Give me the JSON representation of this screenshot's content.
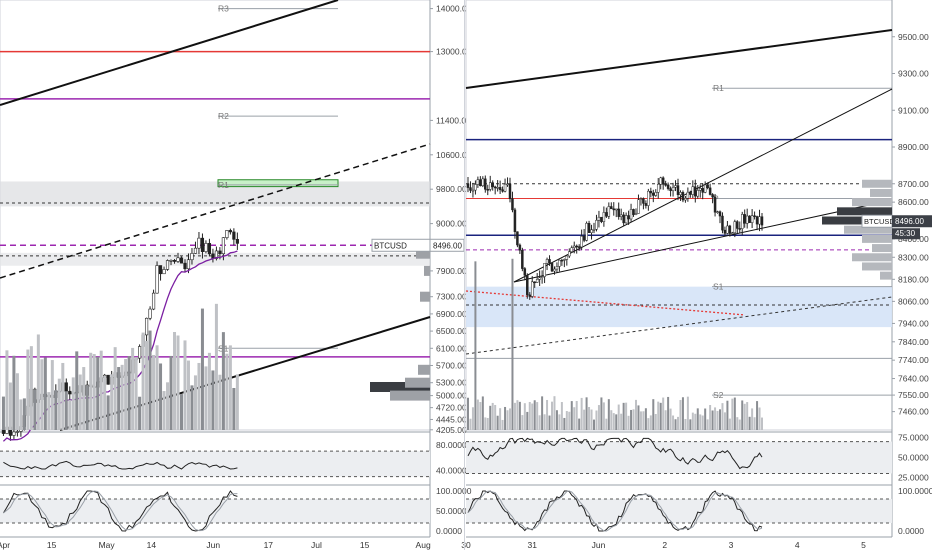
{
  "chart_data": [
    {
      "type": "candlestick",
      "panel": "left",
      "symbol_tag": "BTCUSD",
      "last_price_label": "8496.00",
      "ylim": [
        4200,
        14200
      ],
      "y_ticks": [
        "14000.00",
        "13000.00",
        "11400.00",
        "10600.00",
        "9800.00",
        "9000.00",
        "7900.00",
        "7300.00",
        "6900.00",
        "6500.00",
        "6100.00",
        "5700.00",
        "5300.00",
        "5000.00",
        "4720.00",
        "4445.00",
        "4205.00"
      ],
      "y_tick_values": [
        14000,
        13000,
        11400,
        10600,
        9800,
        9000,
        7900,
        7300,
        6900,
        6500,
        6100,
        5700,
        5300,
        5000,
        4720,
        4445,
        4205
      ],
      "x_ticks": [
        "Apr",
        "15",
        "May",
        "14",
        "Jun",
        "17",
        "Jul",
        "15",
        "Aug"
      ],
      "x_tick_days": [
        1,
        15,
        31,
        44,
        62,
        78,
        92,
        106,
        123
      ],
      "x_range_days": [
        0,
        125
      ],
      "last_candle_day": 69,
      "pivot_labels": [
        "R3",
        "R2",
        "R1",
        "S1"
      ],
      "pivot_values": [
        14000,
        11500,
        9900,
        6100
      ],
      "red_line": 13000,
      "purple_lines": [
        11900,
        5900
      ],
      "purple_dashed": 8496,
      "rsi": {
        "ticks": [
          "80.0000",
          "40.0000"
        ],
        "tick_values": [
          80,
          40
        ],
        "ylim": [
          20,
          100
        ]
      },
      "stoch": {
        "ticks": [
          "100.0000",
          "50.0000",
          "0.0000"
        ],
        "tick_values": [
          100,
          50,
          0
        ],
        "ylim": [
          -15,
          115
        ]
      }
    },
    {
      "type": "candlestick",
      "panel": "right",
      "symbol_tag": "BTCUSD",
      "last_price_label": "8496.00",
      "countdown": "45:30",
      "ylim": [
        7360,
        9700
      ],
      "y_ticks": [
        "9500.00",
        "9300.00",
        "9100.00",
        "8900.00",
        "8700.00",
        "8600.00",
        "8500.00",
        "8400.00",
        "8300.00",
        "8180.00",
        "8060.00",
        "7940.00",
        "7840.00",
        "7740.00",
        "7640.00",
        "7550.00",
        "7460.00"
      ],
      "y_tick_values": [
        9500,
        9300,
        9100,
        8900,
        8700,
        8600,
        8500,
        8400,
        8300,
        8180,
        8060,
        7940,
        7840,
        7740,
        7640,
        7550,
        7460
      ],
      "x_ticks": [
        "30",
        "31",
        "Jun",
        "2",
        "3",
        "4",
        "5"
      ],
      "x_tick_days": [
        0,
        1,
        2,
        3,
        4,
        5,
        6
      ],
      "x_range_days": [
        0,
        6.4
      ],
      "pivot_labels": [
        "R1",
        "P",
        "S1",
        "S2"
      ],
      "pivot_values": [
        9220,
        8620,
        8140,
        7550
      ],
      "rsi": {
        "ticks": [
          "75.0000",
          "50.0000",
          "25.0000"
        ],
        "tick_values": [
          75,
          50,
          25
        ],
        "ylim": [
          18,
          82
        ]
      },
      "stoch": {
        "ticks": [
          "100.0000",
          "0.0000"
        ],
        "tick_values": [
          100,
          0
        ],
        "ylim": [
          -15,
          115
        ]
      }
    }
  ]
}
